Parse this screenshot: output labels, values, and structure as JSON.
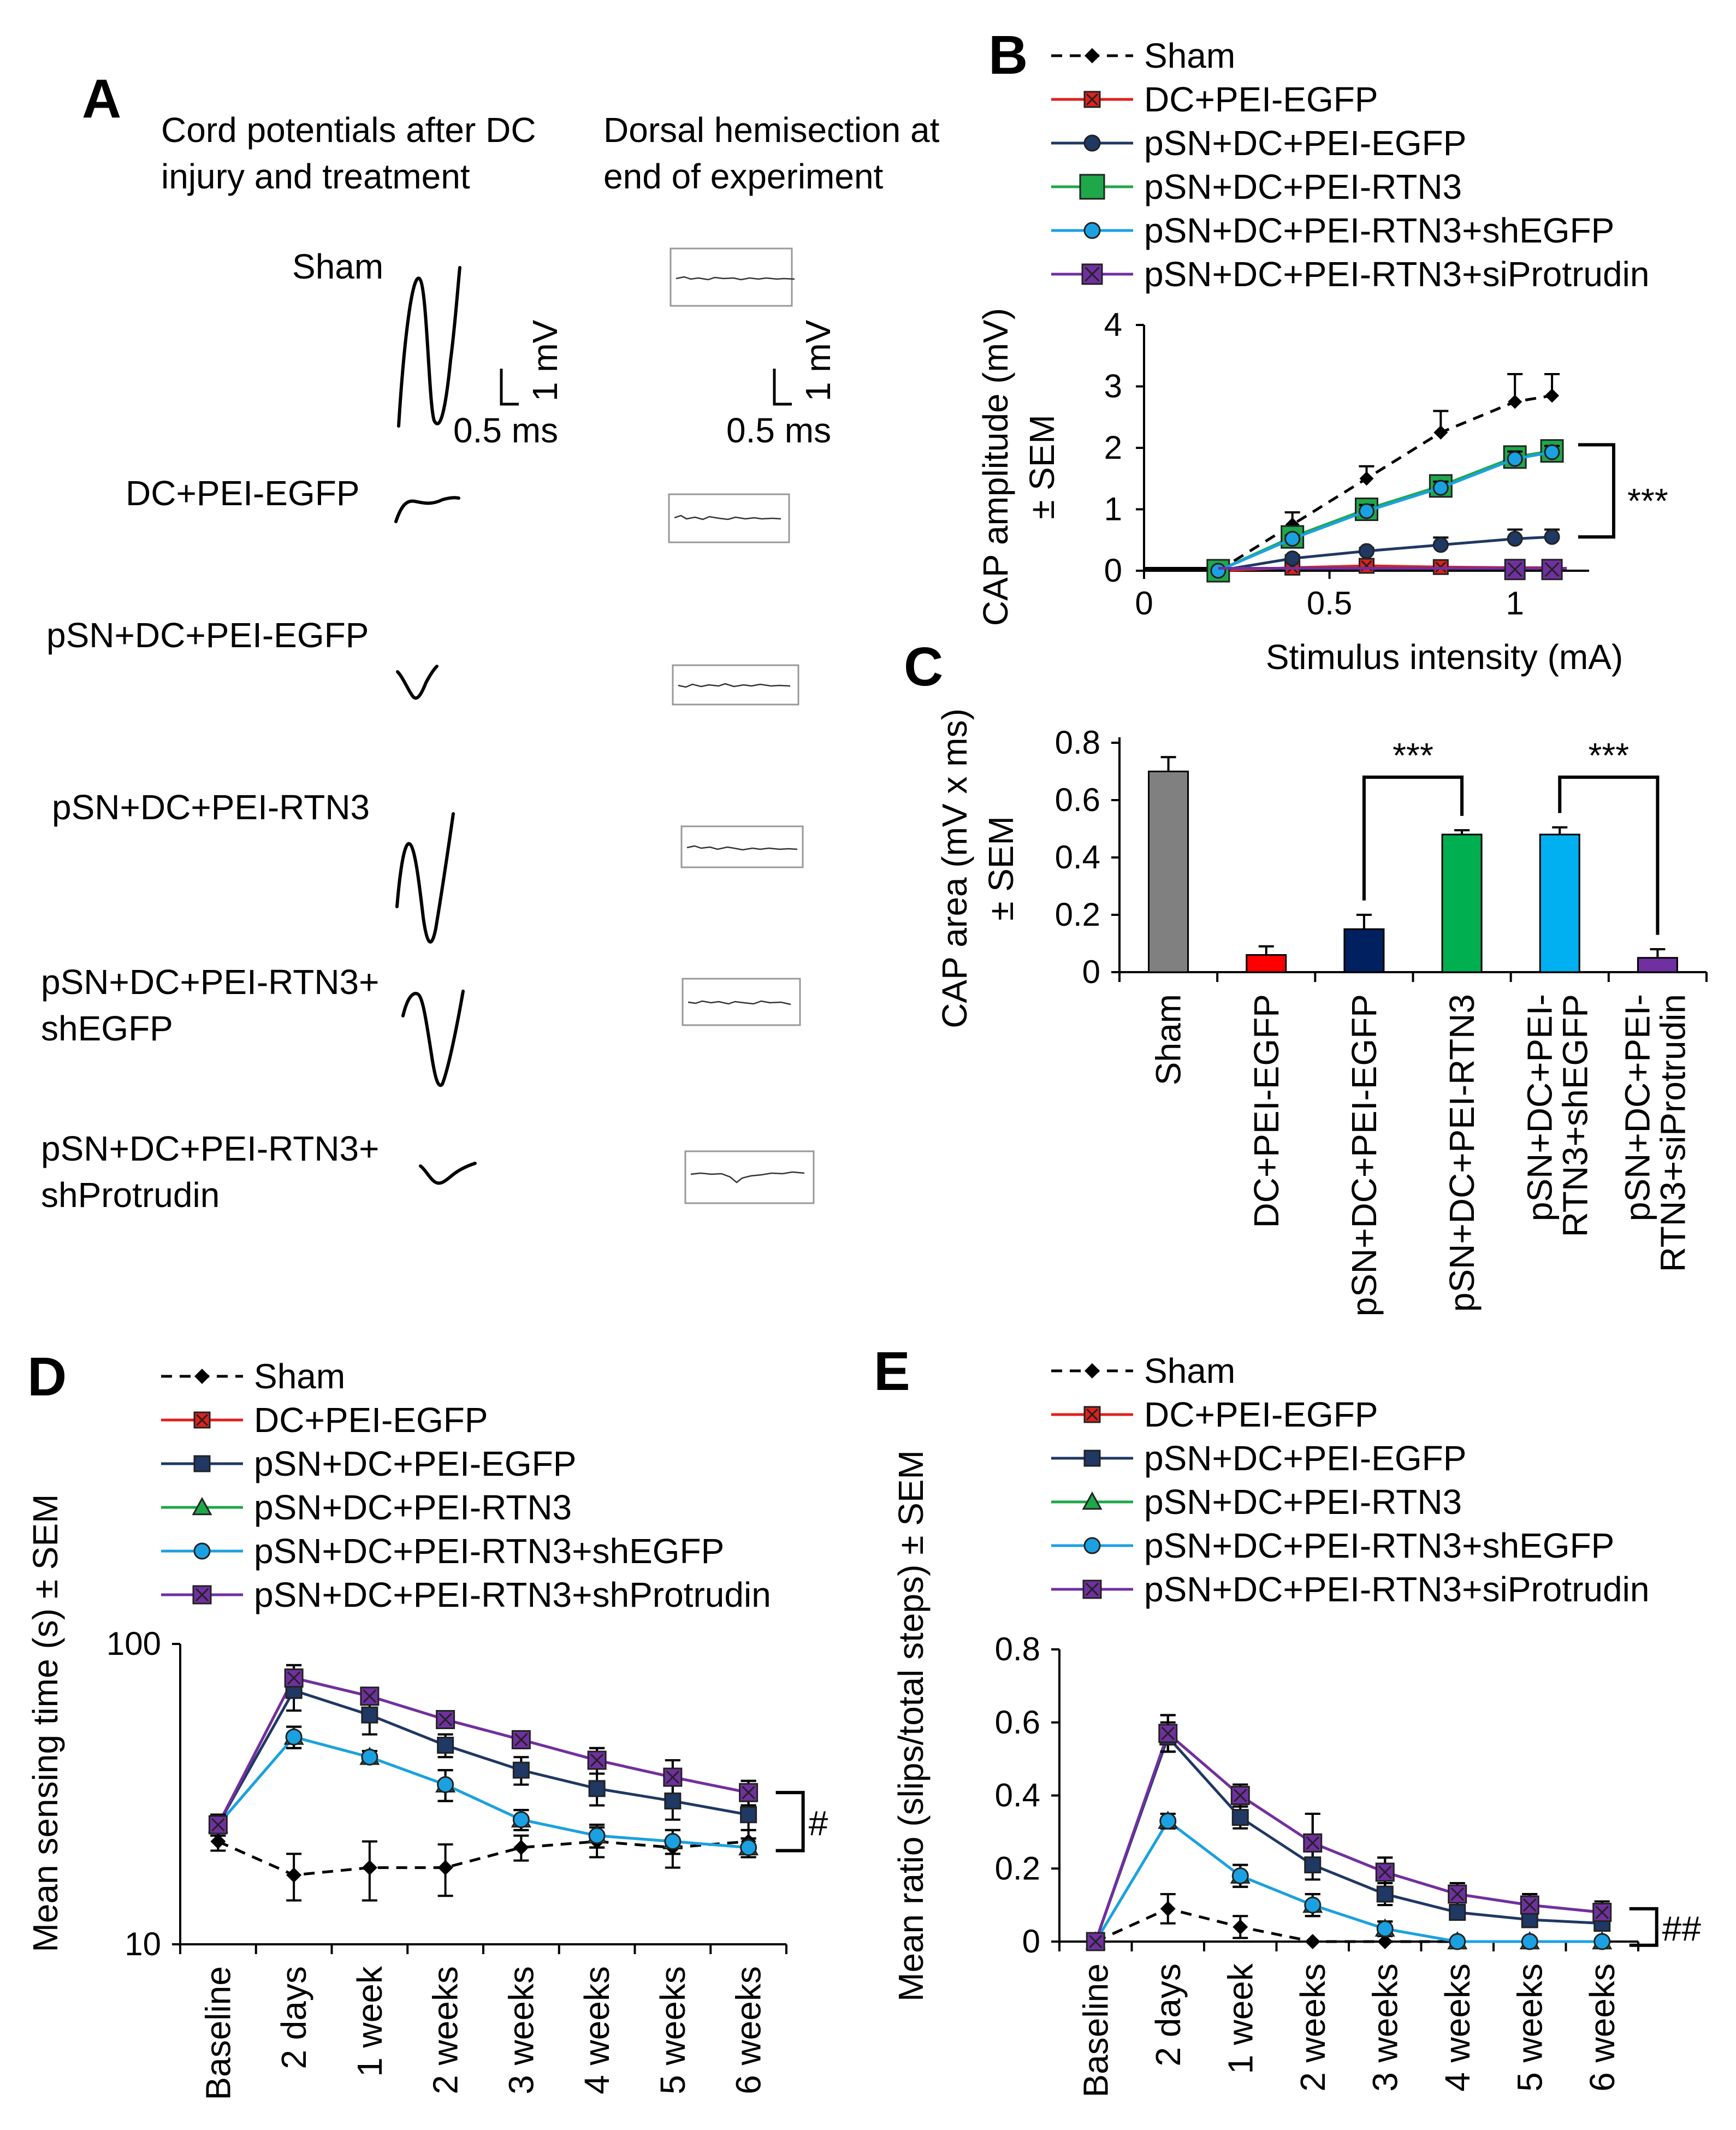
{
  "figure": {
    "panel_letters": {
      "A": "A",
      "B": "B",
      "C": "C",
      "D": "D",
      "E": "E"
    }
  },
  "colors": {
    "sham": "#000000",
    "dc_pei_egfp": "#e0201b",
    "psn_pei_egfp": "#1f3864",
    "psn_pei_rtn3": "#1ea84a",
    "psn_rtn3_shegfp": "#1ba1e2",
    "psn_rtn3_siprotrudin": "#7030a0",
    "bar_sham": "#808080",
    "bar_dc": "#ff0000",
    "bar_psn_egfp": "#002060",
    "bar_psn_rtn3": "#00b050",
    "bar_shegfp": "#00b0f0",
    "bar_siprotrudin": "#7030a0"
  },
  "panel_a": {
    "col1_title_line1": "Cord potentials after DC",
    "col1_title_line2": "injury and treatment",
    "col2_title_line1": "Dorsal hemisection at",
    "col2_title_line2": "end of experiment",
    "scale_mv": "1 mV",
    "scale_ms": "0.5 ms",
    "rows": [
      {
        "line1": "Sham",
        "line2": ""
      },
      {
        "line1": "DC+PEI-EGFP",
        "line2": ""
      },
      {
        "line1": "pSN+DC+PEI-EGFP",
        "line2": ""
      },
      {
        "line1": "pSN+DC+PEI-RTN3",
        "line2": ""
      },
      {
        "line1": "pSN+DC+PEI-RTN3+",
        "line2": "shEGFP"
      },
      {
        "line1": "pSN+DC+PEI-RTN3+",
        "line2": "shProtrudin"
      }
    ]
  },
  "chart_data": [
    {
      "panel": "B",
      "type": "line",
      "xlabel": "Stimulus intensity (mA)",
      "ylabel_line1": "CAP amplitude (mV)",
      "ylabel_line2": "± SEM",
      "xlim": [
        0,
        1.2
      ],
      "ylim": [
        0,
        4
      ],
      "xticks": [
        "0",
        "0.5",
        "1"
      ],
      "xtick_values": [
        0,
        0.5,
        1
      ],
      "yticks": [
        "0",
        "1",
        "2",
        "3",
        "4"
      ],
      "ytick_values": [
        0,
        1,
        2,
        3,
        4
      ],
      "significance": "***",
      "x": [
        0.2,
        0.4,
        0.6,
        0.8,
        1.0,
        1.1
      ],
      "series": [
        {
          "name": "Sham",
          "values": [
            0.0,
            0.75,
            1.5,
            2.25,
            2.75,
            2.85
          ],
          "err": [
            0,
            0.2,
            0.2,
            0.35,
            0.45,
            0.35
          ]
        },
        {
          "name": "DC+PEI-EGFP",
          "values": [
            0.0,
            0.05,
            0.08,
            0.06,
            0.05,
            0.05
          ],
          "err": [
            0,
            0,
            0,
            0,
            0,
            0
          ]
        },
        {
          "name": "pSN+DC+PEI-EGFP",
          "values": [
            0.0,
            0.2,
            0.32,
            0.42,
            0.52,
            0.55
          ],
          "err": [
            0,
            0.05,
            0.05,
            0.12,
            0.15,
            0.12
          ]
        },
        {
          "name": "pSN+DC+PEI-RTN3",
          "values": [
            0.0,
            0.55,
            1.0,
            1.38,
            1.85,
            1.95
          ],
          "err": [
            0,
            0.05,
            0.1,
            0.1,
            0.12,
            0.1
          ]
        },
        {
          "name": "pSN+DC+PEI-RTN3+shEGFP",
          "values": [
            0.0,
            0.52,
            0.97,
            1.35,
            1.82,
            1.93
          ],
          "err": [
            0,
            0.05,
            0.1,
            0.1,
            0.12,
            0.1
          ]
        },
        {
          "name": "pSN+DC+PEI-RTN3+siProtrudin",
          "values": [
            null,
            null,
            null,
            null,
            0.02,
            0.02
          ],
          "err": [
            0,
            0,
            0,
            0,
            0,
            0
          ]
        }
      ]
    },
    {
      "panel": "C",
      "type": "bar",
      "ylabel_line1": "CAP area (mV x ms)",
      "ylabel_line2": "± SEM",
      "ylim": [
        0,
        0.8
      ],
      "yticks": [
        "0",
        "0.2",
        "0.4",
        "0.6",
        "0.8"
      ],
      "ytick_values": [
        0,
        0.2,
        0.4,
        0.6,
        0.8
      ],
      "categories": [
        {
          "line1": "Sham",
          "line2": ""
        },
        {
          "line1": "DC+PEI-EGFP",
          "line2": ""
        },
        {
          "line1": "pSN+DC+PEI-EGFP",
          "line2": ""
        },
        {
          "line1": "pSN+DC+PEI-RTN3",
          "line2": ""
        },
        {
          "line1": "pSN+DC+PEI-",
          "line2": "RTN3+shEGFP"
        },
        {
          "line1": "pSN+DC+PEI-",
          "line2": "RTN3+siProtrudin"
        }
      ],
      "values": [
        0.7,
        0.06,
        0.15,
        0.48,
        0.48,
        0.05
      ],
      "err": [
        0.05,
        0.03,
        0.05,
        0.015,
        0.025,
        0.03
      ],
      "significance": [
        {
          "from": 2,
          "to": 3,
          "label": "***"
        },
        {
          "from": 4,
          "to": 5,
          "label": "***"
        }
      ]
    },
    {
      "panel": "D",
      "type": "line",
      "yscale": "log",
      "ylabel": "Mean sensing time (s) ± SEM",
      "ylim": [
        10,
        100
      ],
      "yticks": [
        "10",
        "100"
      ],
      "ytick_values": [
        10,
        100
      ],
      "categories": [
        "Baseline",
        "2 days",
        "1 week",
        "2 weeks",
        "3 weeks",
        "4 weeks",
        "5 weeks",
        "6 weeks"
      ],
      "significance": "#",
      "series": [
        {
          "name": "Sham",
          "values": [
            22,
            17,
            18,
            18,
            21,
            22,
            21,
            22
          ],
          "err": [
            1.5,
            3,
            4,
            3.5,
            2,
            2.5,
            3,
            2
          ]
        },
        {
          "name": "DC+PEI-EGFP",
          "values": [
            25,
            77,
            67,
            56,
            48,
            41,
            36,
            32
          ],
          "err": [
            2,
            8,
            4,
            3,
            3,
            4,
            5,
            3
          ]
        },
        {
          "name": "pSN+DC+PEI-EGFP",
          "values": [
            25,
            70,
            58,
            46,
            38,
            33,
            30,
            27
          ],
          "err": [
            2,
            10,
            8,
            4,
            4,
            4,
            4,
            3
          ]
        },
        {
          "name": "pSN+DC+PEI-RTN3",
          "values": [
            25,
            49,
            42,
            34,
            26,
            23,
            22,
            21
          ],
          "err": [
            2,
            4,
            2,
            4,
            2,
            2,
            2,
            1.5
          ]
        },
        {
          "name": "pSN+DC+PEI-RTN3+shEGFP",
          "values": [
            25,
            49,
            42,
            34,
            26,
            23,
            22,
            21
          ],
          "err": [
            2,
            4,
            2,
            4,
            2,
            2,
            2,
            1.5
          ]
        },
        {
          "name": "pSN+DC+PEI-RTN3+shProtrudin",
          "values": [
            25,
            77,
            67,
            56,
            48,
            41,
            36,
            32
          ],
          "err": [
            2,
            8,
            4,
            3,
            3,
            4,
            5,
            3
          ]
        }
      ]
    },
    {
      "panel": "E",
      "type": "line",
      "ylabel": "Mean ratio (slips/total steps) ± SEM",
      "ylim": [
        0,
        0.8
      ],
      "yticks": [
        "0",
        "0.2",
        "0.4",
        "0.6",
        "0.8"
      ],
      "ytick_values": [
        0,
        0.2,
        0.4,
        0.6,
        0.8
      ],
      "categories": [
        "Baseline",
        "2 days",
        "1 week",
        "2 weeks",
        "3 weeks",
        "4 weeks",
        "5 weeks",
        "6 weeks"
      ],
      "significance": "##",
      "series": [
        {
          "name": "Sham",
          "values": [
            0,
            0.09,
            0.04,
            0,
            0,
            0,
            0,
            0
          ],
          "err": [
            0,
            0.04,
            0.03,
            0,
            0,
            0,
            0,
            0
          ]
        },
        {
          "name": "DC+PEI-EGFP",
          "values": [
            0,
            0.57,
            0.4,
            0.27,
            0.19,
            0.13,
            0.1,
            0.08
          ],
          "err": [
            0,
            0.05,
            0.03,
            0.08,
            0.04,
            0.03,
            0.03,
            0.03
          ]
        },
        {
          "name": "pSN+DC+PEI-EGFP",
          "values": [
            0,
            0.56,
            0.34,
            0.21,
            0.13,
            0.08,
            0.06,
            0.05
          ],
          "err": [
            0,
            0.04,
            0.03,
            0.04,
            0.03,
            0.02,
            0.02,
            0.02
          ]
        },
        {
          "name": "pSN+DC+PEI-RTN3",
          "values": [
            0,
            0.33,
            0.18,
            0.1,
            0.035,
            0,
            0,
            0
          ],
          "err": [
            0,
            0.02,
            0.03,
            0.03,
            0.02,
            0,
            0,
            0
          ]
        },
        {
          "name": "pSN+DC+PEI-RTN3+shEGFP",
          "values": [
            0,
            0.33,
            0.18,
            0.1,
            0.035,
            0,
            0,
            0
          ],
          "err": [
            0,
            0.02,
            0.03,
            0.03,
            0.02,
            0,
            0,
            0
          ]
        },
        {
          "name": "pSN+DC+PEI-RTN3+siProtrudin",
          "values": [
            0,
            0.57,
            0.4,
            0.27,
            0.19,
            0.13,
            0.1,
            0.08
          ],
          "err": [
            0,
            0.05,
            0.03,
            0.08,
            0.04,
            0.03,
            0.03,
            0.03
          ]
        }
      ]
    }
  ]
}
